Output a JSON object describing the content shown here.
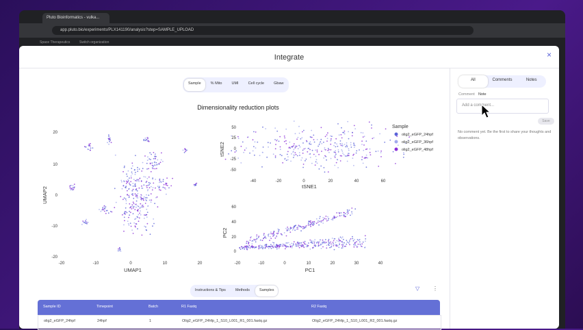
{
  "browser": {
    "tab_title": "Pluto Bioinformatics - vulka...",
    "url": "app.pluto.bio/experiments/PLX141190/analysis?step=SAMPLE_UPLOAD",
    "bookmarks": [
      "Space Therapeutics",
      "Switch organization"
    ]
  },
  "modal": {
    "title": "Integrate",
    "plot_tabs": [
      "Sample",
      "% Mito",
      "UMI",
      "Cell cycle",
      "Gbaw"
    ],
    "plots": {
      "title": "Dimensionality reduction plots",
      "umap": {
        "x_label": "UMAP1",
        "y_label": "UMAP2",
        "x_ticks": [
          "-20",
          "-10",
          "0",
          "10",
          "20"
        ],
        "y_ticks": [
          "-20",
          "-10",
          "0",
          "10",
          "20"
        ]
      },
      "tsne": {
        "x_label": "tSNE1",
        "y_label": "tSNE2",
        "x_ticks": [
          "-40",
          "-20",
          "0",
          "20",
          "40",
          "60"
        ],
        "y_ticks": [
          "50",
          "25",
          "0",
          "-25",
          "-50"
        ]
      },
      "pca": {
        "x_label": "PC1",
        "y_label": "PC2",
        "x_ticks": [
          "-20",
          "-10",
          "0",
          "10",
          "20",
          "30",
          "40"
        ],
        "y_ticks": [
          "60",
          "40",
          "20",
          "0"
        ]
      },
      "legend": {
        "title": "Sample",
        "items": [
          {
            "label": "olig2_eGFP_24hpf",
            "color": "#5a63d8"
          },
          {
            "label": "olig2_eGFP_36hpf",
            "color": "#a3a9ee"
          },
          {
            "label": "olig2_eGFP_48hpf",
            "color": "#8a2ed8"
          }
        ]
      }
    },
    "bottom_tabs": [
      "Instructions & Tips",
      "Methods",
      "Samples"
    ],
    "table": {
      "headers": [
        "Sample ID",
        "Timepoint",
        "Batch",
        "R1 Fastq",
        "R2 Fastq"
      ],
      "rows": [
        [
          "olig2_eGFP_24hpf",
          "24hpf",
          "1",
          "Olig2_eGFP_24hfp_1_S10_L001_R1_001.fastq.gz",
          "Olig2_eGFP_24hfp_1_S10_L001_R2_001.fastq.gz"
        ]
      ]
    },
    "side": {
      "tabs": [
        "All",
        "Comments",
        "Notes"
      ],
      "type_options": [
        "Comment",
        "Note"
      ],
      "placeholder": "Add a comment...",
      "save": "Save",
      "empty": "No comment yet. Be the first to share your thoughts and observations."
    }
  }
}
